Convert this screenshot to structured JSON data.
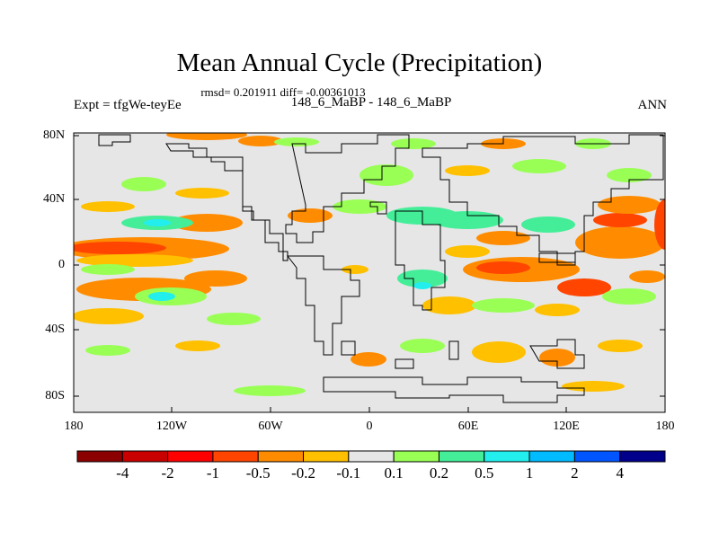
{
  "title": "Mean Annual Cycle (Precipitation)",
  "stats": "rmsd= 0.201911 diff= -0.00361013",
  "left_label": "Expt = tfgWe-teyEe",
  "center_label": "148_6_MaBP - 148_6_MaBP",
  "right_label": "ANN",
  "lat_ticks": [
    "80N",
    "40N",
    "0",
    "40S",
    "80S"
  ],
  "lon_ticks": [
    "180",
    "120W",
    "60W",
    "0",
    "60E",
    "120E",
    "180"
  ],
  "colorbar": {
    "colors": [
      "#8b0000",
      "#c80000",
      "#ff0000",
      "#ff4500",
      "#ff8c00",
      "#ffc000",
      "#e6e6e6",
      "#99ff55",
      "#44ee99",
      "#22eeee",
      "#00bbff",
      "#0055ff",
      "#00008b"
    ],
    "labels": [
      "-4",
      "-2",
      "-1",
      "-0.5",
      "-0.2",
      "-0.1",
      "0.1",
      "0.2",
      "0.5",
      "1",
      "2",
      "4"
    ]
  }
}
